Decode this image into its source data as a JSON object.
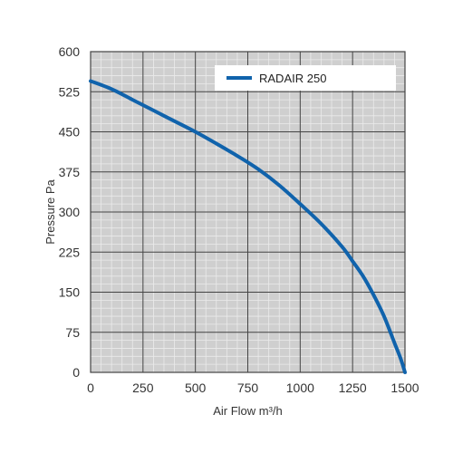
{
  "chart_data": {
    "type": "line",
    "title": "",
    "xlabel": "Air Flow m³/h",
    "ylabel": "Pressure Pa",
    "xlim": [
      0,
      1500
    ],
    "ylim": [
      0,
      600
    ],
    "x_ticks": [
      0,
      250,
      500,
      750,
      1000,
      1250,
      1500
    ],
    "y_ticks": [
      0,
      75,
      150,
      225,
      300,
      375,
      450,
      525,
      600
    ],
    "x_tick_labels": [
      "0",
      "250",
      "500",
      "750",
      "1000",
      "1250",
      "1500"
    ],
    "y_tick_labels": [
      "0",
      "75",
      "150",
      "225",
      "300",
      "375",
      "450",
      "525",
      "600"
    ],
    "grid": true,
    "minor_grid": true,
    "legend_position": "top-right",
    "colors": {
      "plot_background": "#cfcfcf",
      "major_grid": "#444444",
      "minor_grid": "#ebebeb",
      "series": "#1063ac"
    },
    "series": [
      {
        "name": "RADAIR 250",
        "x": [
          0,
          100,
          200,
          300,
          400,
          500,
          600,
          700,
          800,
          900,
          1000,
          1100,
          1200,
          1250,
          1300,
          1350,
          1400,
          1450,
          1480,
          1500
        ],
        "y": [
          545,
          530,
          510,
          490,
          470,
          450,
          428,
          405,
          380,
          350,
          315,
          278,
          235,
          208,
          180,
          145,
          105,
          55,
          25,
          0
        ]
      }
    ]
  }
}
